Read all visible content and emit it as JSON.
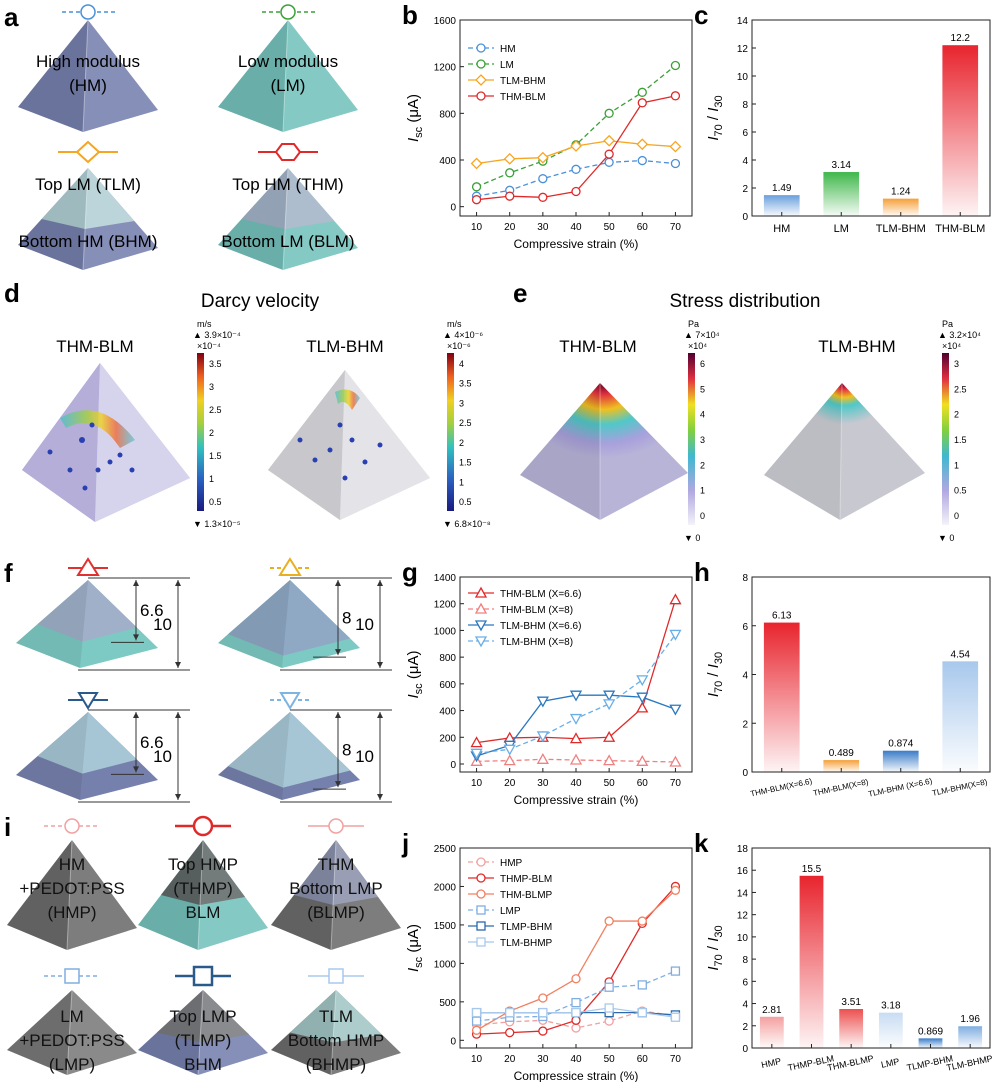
{
  "panels": {
    "a": {
      "label": "a",
      "items": [
        {
          "lines": [
            "High modulus",
            "(HM)"
          ],
          "color": "#7680ad"
        },
        {
          "lines": [
            "Low modulus",
            "(LM)"
          ],
          "color": "#75c2bd"
        },
        {
          "lines": [
            "Top LM (TLM)",
            "Bottom HM (BHM)"
          ],
          "color": "#7680ad",
          "top": "#b9d8d9"
        },
        {
          "lines": [
            "Top HM (THM)",
            "Bottom LM (BLM)"
          ],
          "color": "#75c2bd",
          "top": "#a9b2c9"
        }
      ]
    },
    "d": {
      "label": "d",
      "title": "Darcy velocity",
      "left": {
        "name": "THM-BLM",
        "unit": "m/s",
        "max": "3.9×10⁻⁴",
        "mult": "×10⁻⁴",
        "ticks": [
          "3.5",
          "3",
          "2.5",
          "2",
          "1.5",
          "1",
          "0.5"
        ],
        "min": "1.3×10⁻⁵"
      },
      "right": {
        "name": "TLM-BHM",
        "unit": "m/s",
        "max": "4×10⁻⁶",
        "mult": "×10⁻⁶",
        "ticks": [
          "4",
          "3.5",
          "3",
          "2.5",
          "2",
          "1.5",
          "1",
          "0.5"
        ],
        "min": "6.8×10⁻⁸"
      }
    },
    "e": {
      "label": "e",
      "title": "Stress distribution",
      "left": {
        "name": "THM-BLM",
        "unit": "Pa",
        "max": "7×10⁴",
        "mult": "×10⁴",
        "ticks": [
          "6",
          "5",
          "4",
          "3",
          "2",
          "1",
          "0"
        ],
        "min": "0"
      },
      "right": {
        "name": "TLM-BHM",
        "unit": "Pa",
        "max": "3.2×10⁴",
        "mult": "×10⁴",
        "ticks": [
          "3",
          "2.5",
          "2",
          "1.5",
          "1",
          "0.5",
          "0"
        ],
        "min": "0"
      }
    },
    "f": {
      "label": "f",
      "items": [
        {
          "inner": "6.6",
          "outer": "10",
          "color": "#e03030"
        },
        {
          "inner": "8",
          "outer": "10",
          "color": "#e8b020"
        },
        {
          "inner": "6.6",
          "outer": "10",
          "color": "#2a5a8a"
        },
        {
          "inner": "8",
          "outer": "10",
          "color": "#80b4e0"
        }
      ]
    },
    "i": {
      "label": "i",
      "items": [
        {
          "lines": [
            "HM",
            "+PEDOT:PSS",
            "(HMP)"
          ],
          "color": "#6c6c6c"
        },
        {
          "lines": [
            "Top HMP",
            "(THMP)",
            "BLM"
          ],
          "color": "#75c2bd",
          "top": "#5f5f5f"
        },
        {
          "lines": [
            "THM",
            "Bottom LMP",
            "(BLMP)"
          ],
          "color": "#6c6c6c",
          "top": "#8f96b3"
        },
        {
          "lines": [
            "LM",
            "+PEDOT:PSS",
            "(LMP)"
          ],
          "color": "#7a7a7a"
        },
        {
          "lines": [
            "Top LMP",
            "(TLMP)",
            "BHM"
          ],
          "color": "#7680ad",
          "top": "#7a7a7a"
        },
        {
          "lines": [
            "TLM",
            "Bottom HMP",
            "(BHMP)"
          ],
          "color": "#6c6c6c",
          "top": "#a9cfcf"
        }
      ]
    }
  },
  "chart_data": [
    {
      "id": "b",
      "type": "line",
      "label": "b",
      "ylabel": "I_sc (μA)",
      "xlabel": "Compressive strain (%)",
      "x": [
        10,
        20,
        30,
        40,
        50,
        60,
        70
      ],
      "xlim": [
        5,
        75
      ],
      "ylim": [
        -80,
        1600
      ],
      "yticks": [
        0,
        400,
        800,
        1200,
        1600
      ],
      "series": [
        {
          "name": "HM",
          "color": "#4a90d9",
          "dash": true,
          "marker": "circle",
          "values": [
            90,
            140,
            240,
            320,
            380,
            395,
            370
          ]
        },
        {
          "name": "LM",
          "color": "#3aa037",
          "dash": true,
          "marker": "circle",
          "values": [
            170,
            290,
            390,
            530,
            800,
            980,
            1210
          ]
        },
        {
          "name": "TLM-BHM",
          "color": "#f5a623",
          "dash": false,
          "marker": "diamond",
          "values": [
            370,
            410,
            420,
            520,
            565,
            535,
            515
          ]
        },
        {
          "name": "THM-BLM",
          "color": "#e02a2a",
          "dash": false,
          "marker": "circle",
          "values": [
            60,
            90,
            80,
            130,
            450,
            890,
            950
          ]
        }
      ]
    },
    {
      "id": "c",
      "type": "bar",
      "label": "c",
      "ylabel": "I_70 / I_30",
      "ylim": [
        0,
        14
      ],
      "yticks": [
        0,
        2,
        4,
        6,
        8,
        10,
        12,
        14
      ],
      "categories": [
        "HM",
        "LM",
        "TLM-BHM",
        "THM-BLM"
      ],
      "values": [
        1.49,
        3.14,
        1.24,
        12.2
      ],
      "value_labels": [
        "1.49",
        "3.14",
        "1.24",
        "12.2"
      ],
      "colors": [
        "#6aa0dc",
        "#3eb74a",
        "#f5a03a",
        "#e8242e"
      ]
    },
    {
      "id": "g",
      "type": "line",
      "label": "g",
      "ylabel": "I_sc (μA)",
      "xlabel": "Compressive strain (%)",
      "x": [
        10,
        20,
        30,
        40,
        50,
        60,
        70
      ],
      "xlim": [
        5,
        75
      ],
      "ylim": [
        -60,
        1400
      ],
      "yticks": [
        0,
        200,
        400,
        600,
        800,
        1000,
        1200,
        1400
      ],
      "series": [
        {
          "name": "THM-BLM (X=6.6)",
          "color": "#e02a2a",
          "dash": false,
          "marker": "triangle-up",
          "values": [
            160,
            195,
            200,
            190,
            200,
            420,
            1230
          ]
        },
        {
          "name": "THM-BLM (X=8)",
          "color": "#f08080",
          "dash": true,
          "marker": "triangle-up",
          "values": [
            20,
            25,
            35,
            30,
            25,
            20,
            15
          ]
        },
        {
          "name": "TLM-BHM (X=6.6)",
          "color": "#2a78c0",
          "dash": false,
          "marker": "triangle-down",
          "values": [
            60,
            140,
            470,
            515,
            515,
            500,
            410
          ]
        },
        {
          "name": "TLM-BHM (X=8)",
          "color": "#6aaee6",
          "dash": true,
          "marker": "triangle-down",
          "values": [
            80,
            110,
            210,
            340,
            450,
            630,
            970
          ]
        }
      ]
    },
    {
      "id": "h",
      "type": "bar",
      "label": "h",
      "ylabel": "I_70 / I_30",
      "ylim": [
        0,
        8
      ],
      "yticks": [
        0,
        2,
        4,
        6,
        8
      ],
      "categories": [
        "THM-BLM(X=6.6)",
        "THM-BLM(X=8)",
        "TLM-BHM (X=6.6)",
        "TLM-BHM(X=8)"
      ],
      "values": [
        6.13,
        0.489,
        0.874,
        4.54
      ],
      "value_labels": [
        "6.13",
        "0.489",
        "0.874",
        "4.54"
      ],
      "colors": [
        "#e8242e",
        "#f5a03a",
        "#3a7cc8",
        "#a8c8ec"
      ]
    },
    {
      "id": "j",
      "type": "line",
      "label": "j",
      "ylabel": "I_sc (μA)",
      "xlabel": "Compressice strain (%)",
      "x": [
        10,
        20,
        30,
        40,
        50,
        60,
        70
      ],
      "xlim": [
        5,
        75
      ],
      "ylim": [
        -100,
        2500
      ],
      "yticks": [
        0,
        500,
        1000,
        1500,
        2000,
        2500
      ],
      "series": [
        {
          "name": "HMP",
          "color": "#f2a0a0",
          "dash": true,
          "marker": "circle",
          "values": [
            200,
            240,
            260,
            160,
            250,
            380,
            320
          ]
        },
        {
          "name": "THMP-BLM",
          "color": "#e02a2a",
          "dash": false,
          "marker": "circle",
          "values": [
            80,
            100,
            120,
            260,
            760,
            1520,
            2000
          ]
        },
        {
          "name": "THM-BLMP",
          "color": "#f08060",
          "dash": false,
          "marker": "circle",
          "values": [
            130,
            380,
            550,
            800,
            1550,
            1550,
            1950
          ]
        },
        {
          "name": "LMP",
          "color": "#80aee0",
          "dash": true,
          "marker": "square",
          "values": [
            250,
            300,
            310,
            490,
            690,
            720,
            900
          ]
        },
        {
          "name": "TLMP-BHM",
          "color": "#2a6aaa",
          "dash": false,
          "marker": "square",
          "values": [
            360,
            360,
            360,
            360,
            360,
            360,
            330
          ]
        },
        {
          "name": "TLM-BHMP",
          "color": "#a8c8ec",
          "dash": false,
          "marker": "square",
          "values": [
            360,
            360,
            360,
            360,
            420,
            360,
            300
          ]
        }
      ]
    },
    {
      "id": "k",
      "type": "bar",
      "label": "k",
      "ylabel": "I_70 / I_30",
      "ylim": [
        0,
        18
      ],
      "yticks": [
        0,
        2,
        4,
        6,
        8,
        10,
        12,
        14,
        16,
        18
      ],
      "categories": [
        "HMP",
        "THMP-BLM",
        "THM-BLMP",
        "LMP",
        "TLMP-BHM",
        "TLM-BHMP"
      ],
      "values": [
        2.81,
        15.5,
        3.51,
        3.18,
        0.869,
        1.96
      ],
      "value_labels": [
        "2.81",
        "15.5",
        "3.51",
        "3.18",
        "0.869",
        "1.96"
      ],
      "colors": [
        "#f4a0a0",
        "#e8242e",
        "#ec5050",
        "#c8dcf2",
        "#3a7cc8",
        "#80aee0"
      ]
    }
  ]
}
